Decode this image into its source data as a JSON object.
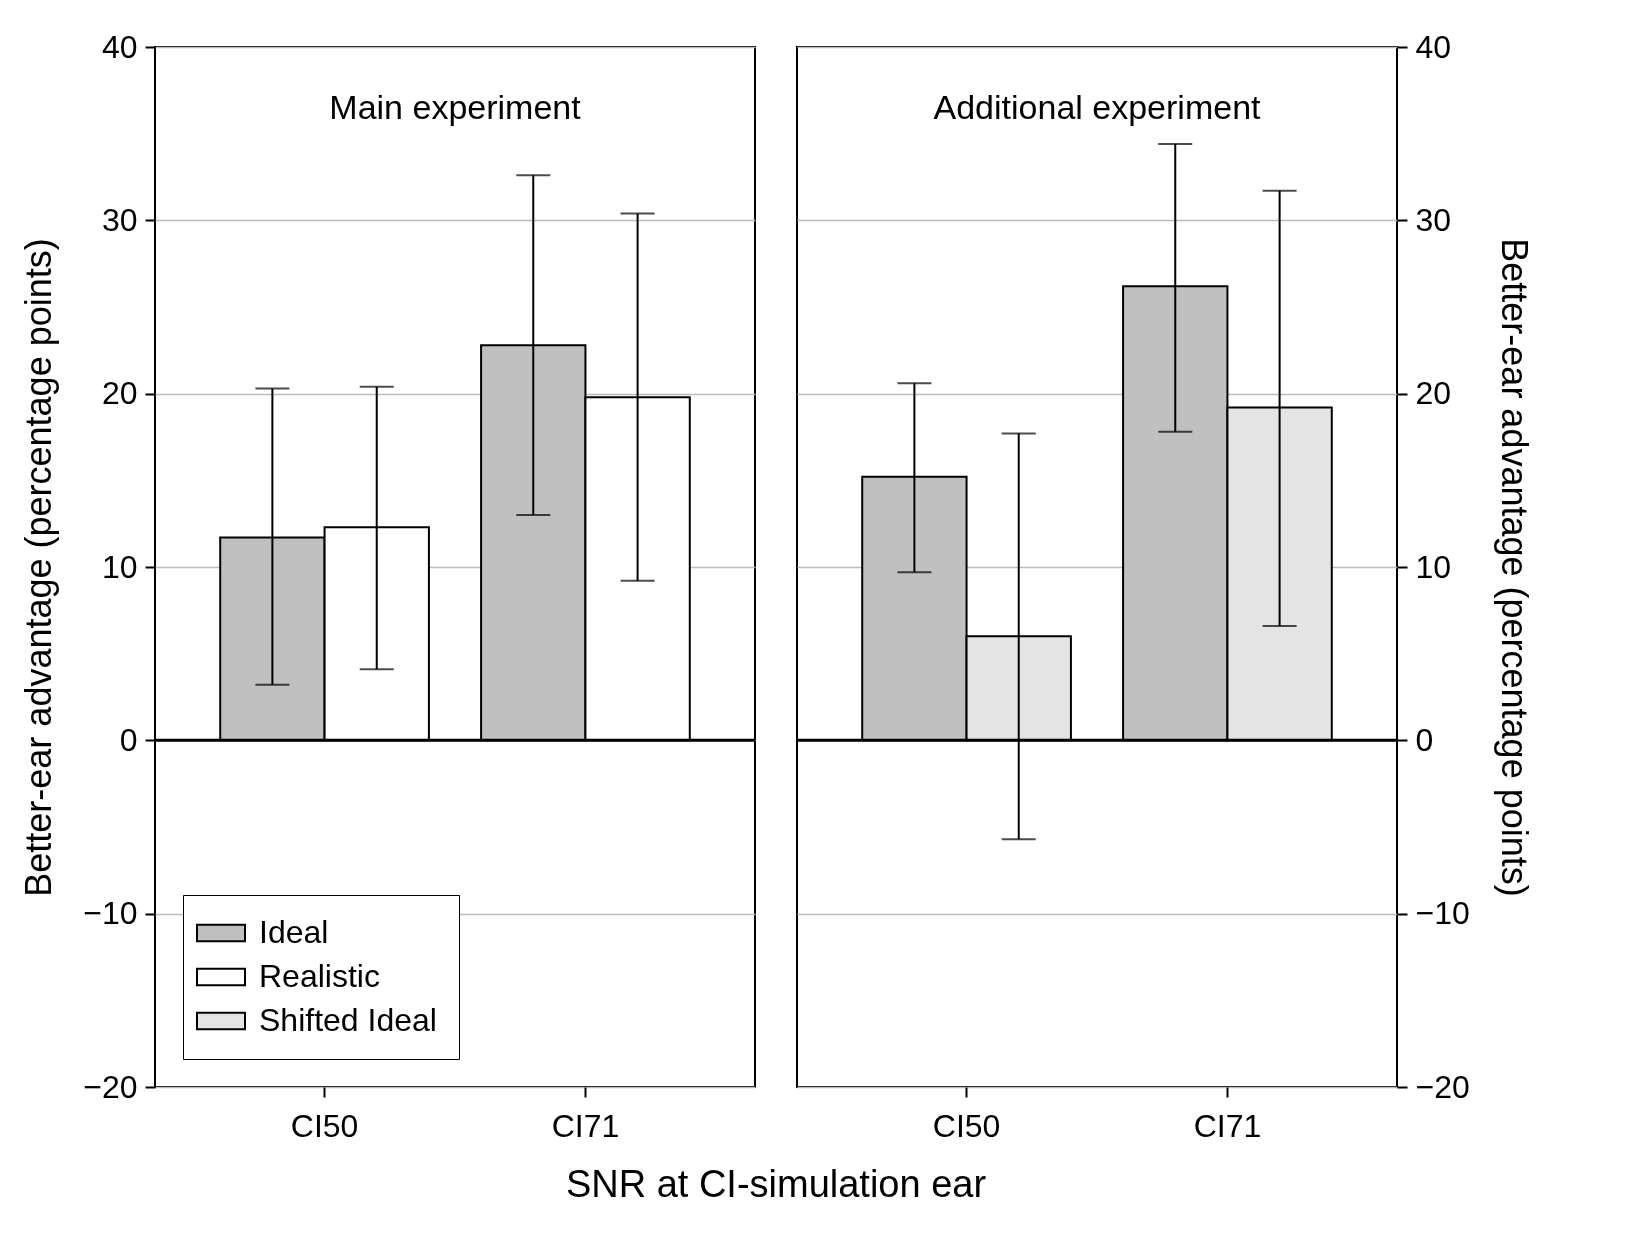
{
  "chart_data": [
    {
      "type": "bar",
      "title": "Main experiment",
      "xlabel": "SNR at CI-simulation ear",
      "ylabel": "Better-ear advantage (percentage points)",
      "categories": [
        "CI50",
        "CI71"
      ],
      "series": [
        {
          "name": "Ideal",
          "color": "#c0c0c0",
          "values": [
            11.7,
            22.8
          ],
          "errors": [
            [
              3.2,
              20.3
            ],
            [
              13.0,
              32.6
            ]
          ]
        },
        {
          "name": "Realistic",
          "color": "#ffffff",
          "values": [
            12.3,
            19.8
          ],
          "errors": [
            [
              4.1,
              20.4
            ],
            [
              9.2,
              30.4
            ]
          ]
        },
        {
          "name": "Shifted Ideal",
          "color": "#e4e4e4",
          "values": [
            null,
            null
          ]
        }
      ],
      "ylim": [
        -20,
        40
      ],
      "yticks": [
        -20,
        -10,
        0,
        10,
        20,
        30,
        40
      ],
      "grid": "y",
      "legend": "bottom left",
      "ref_lines": [
        {
          "axis": "y",
          "value": 0,
          "color": "#000000"
        }
      ]
    },
    {
      "type": "bar",
      "title": "Additional experiment",
      "ylabel": "Better-ear advantage (percentage points)",
      "categories": [
        "CI50",
        "CI71"
      ],
      "series": [
        {
          "color": "#c0c0c0",
          "values": [
            15.2,
            26.2
          ],
          "errors": [
            [
              9.7,
              20.6
            ],
            [
              17.8,
              34.4
            ]
          ]
        },
        {
          "color": "#e4e4e4",
          "values": [
            6.0,
            19.2
          ],
          "errors": [
            [
              -5.7,
              17.7
            ],
            [
              6.6,
              31.7
            ]
          ]
        }
      ],
      "ylim": [
        -20,
        40
      ],
      "yticks": [
        -20,
        -10,
        0,
        10,
        20,
        30,
        40
      ],
      "grid": "y",
      "ref_lines": [
        {
          "axis": "y",
          "value": 0,
          "color": "#000000"
        }
      ]
    }
  ]
}
